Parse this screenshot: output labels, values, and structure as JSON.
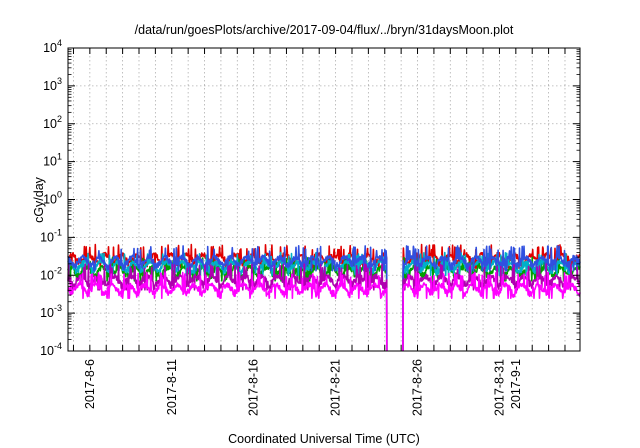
{
  "chart_data": {
    "type": "line",
    "title": "/data/run/goesPlots/archive/2017-09-04/flux/../bryn/31daysMoon.plot",
    "xlabel": "Coordinated Universal Time (UTC)",
    "ylabel": "cGy/day",
    "yscale": "log",
    "ylim": [
      0.0001,
      10000
    ],
    "xlim": [
      "2017-08-04T16:00",
      "2017-09-04T22:00"
    ],
    "grid": true,
    "x_ticks": [
      "2017-8-6",
      "2017-8-11",
      "2017-8-16",
      "2017-8-21",
      "2017-8-26",
      "2017-8-31",
      "2017-9-1"
    ],
    "y_ticks": [
      {
        "base": "10",
        "exp": "-4"
      },
      {
        "base": "10",
        "exp": "-3"
      },
      {
        "base": "10",
        "exp": "-2"
      },
      {
        "base": "10",
        "exp": "-1"
      },
      {
        "base": "10",
        "exp": "0"
      },
      {
        "base": "10",
        "exp": "1"
      },
      {
        "base": "10",
        "exp": "2"
      },
      {
        "base": "10",
        "exp": "3"
      },
      {
        "base": "10",
        "exp": "4"
      }
    ],
    "data_gap": [
      "2017-08-24T03:00",
      "2017-08-25T03:00"
    ],
    "series": [
      {
        "color": "#e00000",
        "baseline": 0.028,
        "spike_max": 0.065,
        "dropout_to": 0.0001
      },
      {
        "color": "#00a000",
        "baseline": 0.013,
        "spike_max": 0.03,
        "dropout_to": 0.0001
      },
      {
        "color": "#00b0c8",
        "baseline": 0.018,
        "spike_max": 0.04,
        "dropout_to": 0.0001
      },
      {
        "color": "#3050e0",
        "baseline": 0.024,
        "spike_max": 0.06,
        "dropout_to": 0.0001
      },
      {
        "color": "#b000b0",
        "baseline": 0.0075,
        "spike_max": 0.02,
        "dropout_to": 0.0001
      },
      {
        "color": "#ff00ff",
        "baseline": 0.0045,
        "spike_max": 0.012,
        "dropout_to": 0.0001
      }
    ]
  }
}
